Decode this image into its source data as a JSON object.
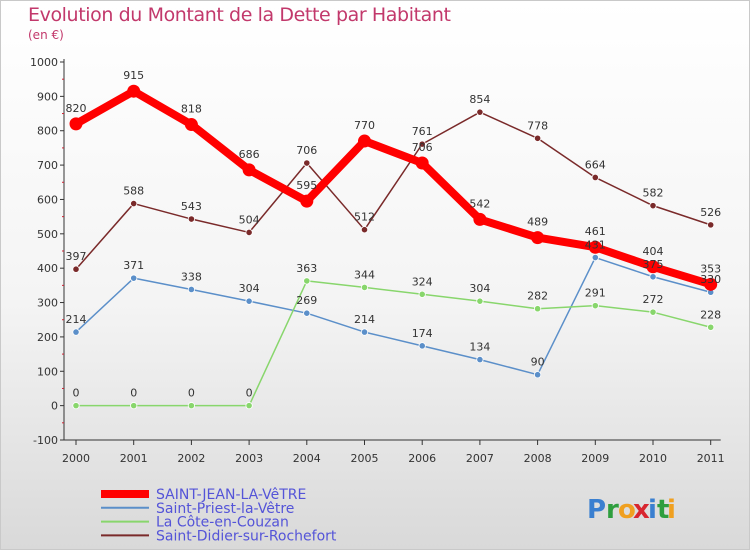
{
  "title": "Evolution du Montant de la Dette par Habitant",
  "subtitle": "(en €)",
  "logo": {
    "text": "Proxiti",
    "letters": [
      "P",
      "r",
      "o",
      "x",
      "i",
      "t",
      "i"
    ],
    "letter_colors": [
      "#3a7fd0",
      "#2e9e3e",
      "#f0a020",
      "#d8262f",
      "#3a7fd0",
      "#2e9e3e",
      "#f0a020"
    ]
  },
  "chart_data": {
    "type": "line",
    "title": "Evolution du Montant de la Dette par Habitant",
    "subtitle": "(en €)",
    "x": [
      "2000",
      "2001",
      "2002",
      "2003",
      "2004",
      "2005",
      "2006",
      "2007",
      "2008",
      "2009",
      "2010",
      "2011"
    ],
    "ylim": [
      -100,
      1000
    ],
    "yticks": [
      -100,
      0,
      100,
      200,
      300,
      400,
      500,
      600,
      700,
      800,
      900,
      1000
    ],
    "grid": false,
    "legend_position": "bottom-left",
    "series": [
      {
        "name": "SAINT-JEAN-LA-VêTRE",
        "color": "#ff0000",
        "emphasis": true,
        "values": [
          820,
          915,
          818,
          686,
          595,
          770,
          706,
          542,
          489,
          461,
          404,
          353
        ]
      },
      {
        "name": "Saint-Priest-la-Vêtre",
        "color": "#5b8fc9",
        "emphasis": false,
        "values": [
          214,
          371,
          338,
          304,
          269,
          214,
          174,
          134,
          90,
          431,
          375,
          330
        ]
      },
      {
        "name": "La Côte-en-Couzan",
        "color": "#88d66c",
        "emphasis": false,
        "values": [
          0,
          0,
          0,
          0,
          363,
          344,
          324,
          304,
          282,
          291,
          272,
          228
        ]
      },
      {
        "name": "Saint-Didier-sur-Rochefort",
        "color": "#7a2a2a",
        "emphasis": false,
        "values": [
          397,
          588,
          543,
          504,
          706,
          512,
          761,
          854,
          778,
          664,
          582,
          526
        ]
      }
    ]
  }
}
